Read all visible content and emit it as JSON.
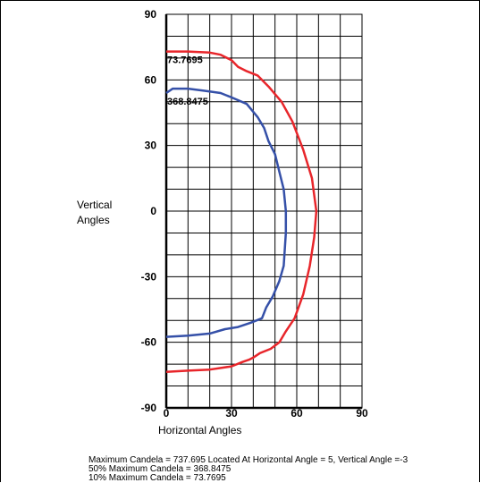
{
  "chart_data": {
    "type": "line",
    "xlabel": "Horizontal Angles",
    "ylabel_line1": "Vertical",
    "ylabel_line2": "Angles",
    "xlim": [
      0,
      90
    ],
    "ylim": [
      -90,
      90
    ],
    "x_ticks": [
      0,
      30,
      60,
      90
    ],
    "y_ticks": [
      90,
      60,
      30,
      0,
      -30,
      -60,
      -90
    ],
    "grid": true,
    "grid_step": 10,
    "series": [
      {
        "name": "73.7695",
        "color": "#e8262b",
        "points": [
          [
            0,
            73
          ],
          [
            10,
            73
          ],
          [
            20,
            72.5
          ],
          [
            25,
            71.5
          ],
          [
            30,
            69
          ],
          [
            33,
            66
          ],
          [
            37,
            64
          ],
          [
            42,
            62
          ],
          [
            47,
            57
          ],
          [
            53,
            50
          ],
          [
            58,
            41
          ],
          [
            63,
            28
          ],
          [
            67,
            15
          ],
          [
            69,
            0
          ],
          [
            68,
            -12
          ],
          [
            66,
            -25
          ],
          [
            63,
            -38
          ],
          [
            59,
            -49
          ],
          [
            55,
            -55
          ],
          [
            52,
            -60
          ],
          [
            48,
            -63
          ],
          [
            43,
            -65
          ],
          [
            40,
            -67
          ],
          [
            38,
            -68
          ],
          [
            35,
            -69
          ],
          [
            30,
            -71
          ],
          [
            20,
            -72.5
          ],
          [
            10,
            -73
          ],
          [
            0,
            -73.5
          ]
        ]
      },
      {
        "name": "368.8475",
        "color": "#3550a8",
        "points": [
          [
            0,
            54
          ],
          [
            3,
            56
          ],
          [
            10,
            56
          ],
          [
            18,
            55
          ],
          [
            25,
            54
          ],
          [
            30,
            52
          ],
          [
            37,
            49
          ],
          [
            42,
            43
          ],
          [
            45,
            38
          ],
          [
            47,
            32
          ],
          [
            50,
            26
          ],
          [
            52,
            18
          ],
          [
            54,
            10
          ],
          [
            55,
            0
          ],
          [
            55,
            -10
          ],
          [
            54,
            -25
          ],
          [
            52,
            -32
          ],
          [
            49,
            -39
          ],
          [
            46,
            -44
          ],
          [
            44,
            -49
          ],
          [
            39,
            -51
          ],
          [
            33,
            -53
          ],
          [
            27,
            -54
          ],
          [
            20,
            -56
          ],
          [
            10,
            -57
          ],
          [
            0,
            -57.5
          ]
        ]
      }
    ]
  },
  "footer": {
    "line1": "Maximum Candela = 737.695   Located At Horizontal Angle = 5, Vertical Angle =-3",
    "line2": "50% Maximum Candela = 368.8475",
    "line3": "10% Maximum Candela = 73.7695"
  }
}
